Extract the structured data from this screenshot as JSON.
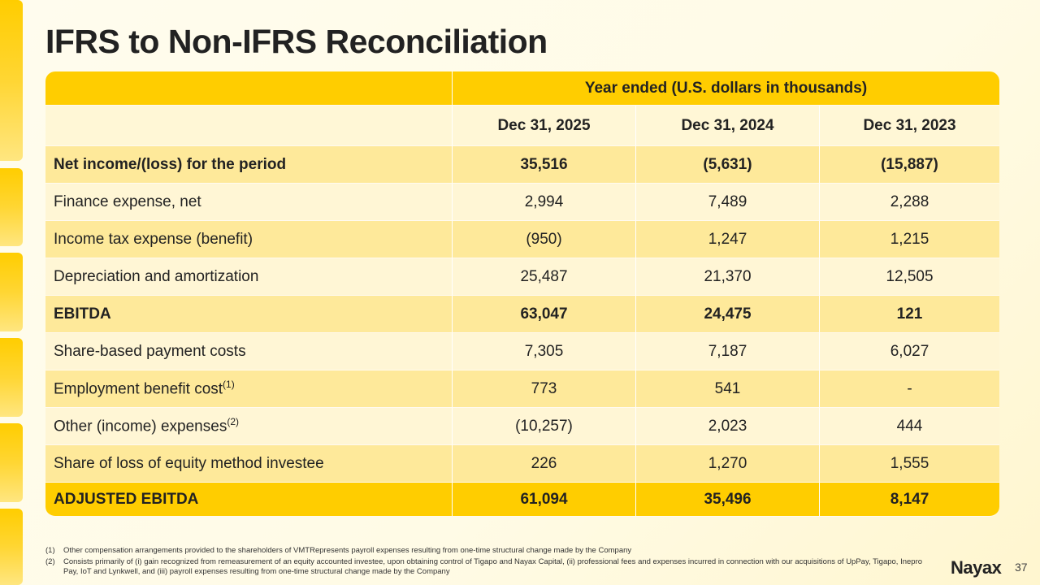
{
  "title": "IFRS to Non-IFRS Reconciliation",
  "table": {
    "group_header": "Year ended (U.S. dollars in thousands)",
    "columns": [
      "Dec 31, 2025",
      "Dec 31, 2024",
      "Dec 31, 2023"
    ],
    "rows": [
      {
        "label": "Net income/(loss) for the period",
        "sup": "",
        "values": [
          "35,516",
          "(5,631)",
          "(15,887)"
        ]
      },
      {
        "label": "Finance expense, net",
        "sup": "",
        "values": [
          "2,994",
          "7,489",
          "2,288"
        ]
      },
      {
        "label": "Income tax expense (benefit)",
        "sup": "",
        "values": [
          "(950)",
          "1,247",
          "1,215"
        ]
      },
      {
        "label": "Depreciation and amortization",
        "sup": "",
        "values": [
          "25,487",
          "21,370",
          "12,505"
        ]
      },
      {
        "label": "EBITDA",
        "sup": "",
        "values": [
          "63,047",
          "24,475",
          "121"
        ]
      },
      {
        "label": "Share-based payment costs",
        "sup": "",
        "values": [
          "7,305",
          "7,187",
          "6,027"
        ]
      },
      {
        "label": "Employment benefit cost",
        "sup": "(1)",
        "values": [
          "773",
          "541",
          "-"
        ]
      },
      {
        "label": "Other (income) expenses",
        "sup": "(2)",
        "values": [
          "(10,257)",
          "2,023",
          "444"
        ]
      },
      {
        "label": "Share of loss of equity method investee",
        "sup": "",
        "values": [
          "226",
          "1,270",
          "1,555"
        ]
      },
      {
        "label": "ADJUSTED EBITDA",
        "sup": "",
        "values": [
          "61,094",
          "35,496",
          "8,147"
        ]
      }
    ]
  },
  "footnotes": [
    {
      "num": "(1)",
      "text": "Other compensation arrangements provided to the shareholders of VMTRepresents payroll expenses resulting from one-time structural change made by the Company"
    },
    {
      "num": "(2)",
      "text": "Consists primarily of (i) gain recognized from remeasurement of an equity accounted investee, upon obtaining control of Tigapo and Nayax Capital, (ii) professional fees and expenses incurred in connection with our acquisitions of UpPay, Tigapo, Inepro Pay, IoT and Lynkwell, and (iii) payroll expenses resulting from one-time structural change made by the Company"
    }
  ],
  "logo": "Nayax",
  "page_number": "37",
  "colors": {
    "accent": "#ffcd00",
    "row_dark": "#fee99a",
    "row_light": "#fff6d5"
  }
}
